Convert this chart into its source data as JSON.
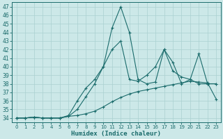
{
  "xlabel": "Humidex (Indice chaleur)",
  "bg_color": "#cce8e8",
  "grid_color": "#aad0d0",
  "line_color": "#1a6b6b",
  "xlim": [
    -0.5,
    23.5
  ],
  "ylim": [
    33.5,
    47.5
  ],
  "xticks": [
    0,
    1,
    2,
    3,
    4,
    5,
    6,
    7,
    8,
    9,
    10,
    11,
    12,
    13,
    14,
    15,
    16,
    17,
    18,
    19,
    20,
    21,
    22,
    23
  ],
  "yticks": [
    34,
    35,
    36,
    37,
    38,
    39,
    40,
    41,
    42,
    43,
    44,
    45,
    46,
    47
  ],
  "series1_x": [
    0,
    1,
    2,
    3,
    4,
    5,
    6,
    7,
    8,
    9,
    10,
    11,
    12,
    13,
    14,
    15,
    16,
    17,
    18,
    19,
    20,
    21,
    22,
    23
  ],
  "series1_y": [
    34.0,
    34.0,
    34.1,
    34.0,
    34.0,
    34.0,
    34.2,
    34.3,
    34.5,
    34.8,
    35.3,
    35.9,
    36.4,
    36.8,
    37.1,
    37.3,
    37.5,
    37.7,
    37.9,
    38.1,
    38.3,
    38.2,
    38.1,
    36.2
  ],
  "series2_x": [
    0,
    1,
    2,
    3,
    4,
    5,
    6,
    7,
    8,
    9,
    10,
    11,
    12,
    13,
    14,
    15,
    16,
    17,
    18,
    19,
    20,
    21,
    22,
    23
  ],
  "series2_y": [
    34.0,
    34.0,
    34.1,
    34.0,
    34.0,
    34.0,
    34.3,
    36.0,
    37.5,
    38.5,
    40.0,
    42.0,
    43.0,
    38.5,
    38.3,
    39.0,
    40.0,
    42.0,
    40.5,
    38.0,
    38.5,
    38.0,
    38.0,
    38.0
  ],
  "series3_x": [
    0,
    1,
    2,
    3,
    4,
    5,
    6,
    7,
    8,
    9,
    10,
    11,
    12,
    13,
    14,
    15,
    16,
    17,
    18,
    19,
    20,
    21,
    22,
    23
  ],
  "series3_y": [
    34.0,
    34.0,
    34.1,
    34.0,
    34.0,
    34.0,
    34.2,
    35.0,
    36.5,
    38.0,
    40.0,
    44.5,
    47.0,
    44.0,
    38.5,
    38.0,
    38.2,
    42.0,
    39.5,
    38.8,
    38.5,
    41.5,
    38.0,
    38.0
  ]
}
